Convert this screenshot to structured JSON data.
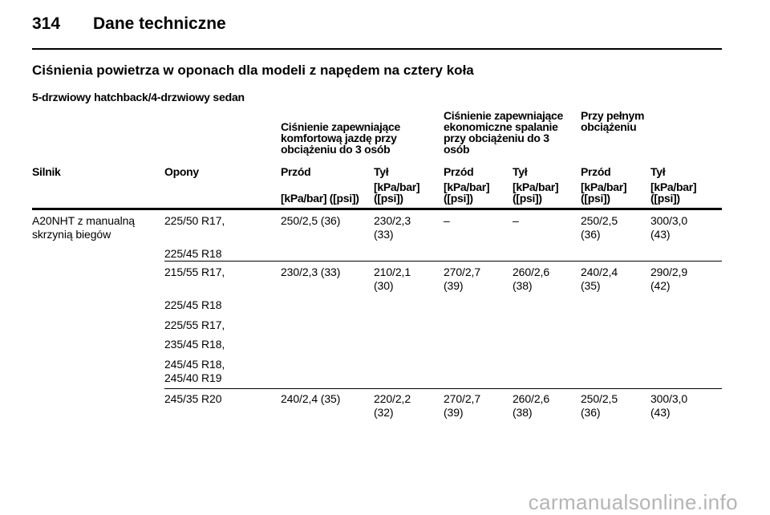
{
  "header": {
    "page_number": "314",
    "title": "Dane techniczne"
  },
  "section_title": "Ciśnienia powietrza w oponach dla modeli z napędem na cztery koła",
  "subsection_title": "5-drzwiowy hatchback/4-drzwiowy sedan",
  "table": {
    "group_headers": {
      "comfort": [
        "Ciśnienie zapewniające",
        "komfortową jazdę przy",
        "obciążeniu do 3 osób"
      ],
      "eco": [
        "Ciśnienie zapewniające",
        "ekonomiczne spalanie",
        "przy obciążeniu do 3",
        "osób"
      ],
      "full_load": [
        "Przy pełnym",
        "obciążeniu"
      ]
    },
    "columns": {
      "engine": "Silnik",
      "tyres": "Opony",
      "comfort_front": "Przód",
      "comfort_rear": "Tył",
      "eco_front": "Przód",
      "eco_rear": "Tył",
      "full_front": "Przód",
      "full_rear": "Tył"
    },
    "units": {
      "comfort_front": [
        "[kPa/bar] ([psi])"
      ],
      "comfort_rear": [
        "[kPa/bar]",
        "([psi])"
      ],
      "eco_front": [
        "[kPa/bar]",
        "([psi])"
      ],
      "eco_rear": [
        "[kPa/bar]",
        "([psi])"
      ],
      "full_front": [
        "[kPa/bar]",
        "([psi])"
      ],
      "full_rear": [
        "[kPa/bar]",
        "([psi])"
      ]
    },
    "engine_label": [
      "A20NHT z manualną",
      "skrzynią biegów"
    ],
    "rows": [
      {
        "tyres": [
          "225/50 R17,",
          "225/45 R18"
        ],
        "comfort_front": [
          "250/2,5 (36)"
        ],
        "comfort_rear": [
          "230/2,3",
          "(33)"
        ],
        "eco_front": [
          "–"
        ],
        "eco_rear": [
          "–"
        ],
        "full_front": [
          "250/2,5",
          "(36)"
        ],
        "full_rear": [
          "300/3,0",
          "(43)"
        ]
      },
      {
        "tyres": [
          "215/55 R17,",
          "225/45 R18",
          "225/55 R17,",
          "235/45 R18,",
          "245/45 R18,",
          "245/40 R19"
        ],
        "comfort_front": [
          "230/2,3 (33)"
        ],
        "comfort_rear": [
          "210/2,1",
          "(30)"
        ],
        "eco_front": [
          "270/2,7",
          "(39)"
        ],
        "eco_rear": [
          "260/2,6",
          "(38)"
        ],
        "full_front": [
          "240/2,4",
          "(35)"
        ],
        "full_rear": [
          "290/2,9",
          "(42)"
        ]
      },
      {
        "tyres": [
          "245/35 R20"
        ],
        "comfort_front": [
          "240/2,4 (35)"
        ],
        "comfort_rear": [
          "220/2,2",
          "(32)"
        ],
        "eco_front": [
          "270/2,7",
          "(39)"
        ],
        "eco_rear": [
          "260/2,6",
          "(38)"
        ],
        "full_front": [
          "250/2,5",
          "(36)"
        ],
        "full_rear": [
          "300/3,0",
          "(43)"
        ]
      }
    ]
  },
  "watermark": "carmanualsonline.info"
}
